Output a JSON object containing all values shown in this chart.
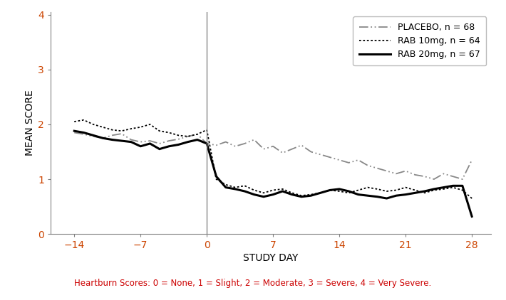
{
  "xlabel": "STUDY DAY",
  "ylabel": "MEAN SCORE",
  "footnote": "Heartburn Scores: 0 = None, 1 = Slight, 2 = Moderate, 3 = Severe, 4 = Very Severe.",
  "ylim": [
    0,
    4.05
  ],
  "yticks": [
    0,
    1,
    2,
    3,
    4
  ],
  "xticks": [
    -14,
    -7,
    0,
    7,
    14,
    21,
    28
  ],
  "xlim": [
    -16.5,
    30
  ],
  "vline_x": 0,
  "legend_labels": [
    "PLACEBO, n = 68",
    "RAB 10mg, n = 64",
    "RAB 20mg, n = 67"
  ],
  "placebo_x": [
    -14,
    -13,
    -12,
    -11,
    -10,
    -9,
    -8,
    -7,
    -6,
    -5,
    -4,
    -3,
    -2,
    -1,
    0,
    1,
    2,
    3,
    4,
    5,
    6,
    7,
    8,
    9,
    10,
    11,
    12,
    13,
    14,
    15,
    16,
    17,
    18,
    19,
    20,
    21,
    22,
    23,
    24,
    25,
    26,
    27,
    28
  ],
  "placebo_y": [
    1.85,
    1.82,
    1.78,
    1.75,
    1.8,
    1.83,
    1.72,
    1.68,
    1.7,
    1.65,
    1.7,
    1.73,
    1.78,
    1.82,
    1.65,
    1.62,
    1.68,
    1.6,
    1.65,
    1.72,
    1.55,
    1.6,
    1.48,
    1.55,
    1.62,
    1.5,
    1.45,
    1.4,
    1.35,
    1.3,
    1.35,
    1.25,
    1.2,
    1.15,
    1.1,
    1.15,
    1.08,
    1.05,
    1.0,
    1.1,
    1.05,
    1.0,
    1.35
  ],
  "rab10_x": [
    -14,
    -13,
    -12,
    -11,
    -10,
    -9,
    -8,
    -7,
    -6,
    -5,
    -4,
    -3,
    -2,
    -1,
    0,
    1,
    2,
    3,
    4,
    5,
    6,
    7,
    8,
    9,
    10,
    11,
    12,
    13,
    14,
    15,
    16,
    17,
    18,
    19,
    20,
    21,
    22,
    23,
    24,
    25,
    26,
    27,
    28
  ],
  "rab10_y": [
    2.05,
    2.08,
    2.0,
    1.95,
    1.9,
    1.88,
    1.92,
    1.95,
    2.0,
    1.88,
    1.85,
    1.8,
    1.78,
    1.82,
    1.9,
    1.0,
    0.9,
    0.85,
    0.88,
    0.8,
    0.75,
    0.8,
    0.82,
    0.75,
    0.7,
    0.72,
    0.75,
    0.8,
    0.78,
    0.75,
    0.8,
    0.85,
    0.82,
    0.78,
    0.8,
    0.85,
    0.8,
    0.75,
    0.8,
    0.82,
    0.85,
    0.8,
    0.65
  ],
  "rab20_x": [
    -14,
    -13,
    -12,
    -11,
    -10,
    -9,
    -8,
    -7,
    -6,
    -5,
    -4,
    -3,
    -2,
    -1,
    0,
    1,
    2,
    3,
    4,
    5,
    6,
    7,
    8,
    9,
    10,
    11,
    12,
    13,
    14,
    15,
    16,
    17,
    18,
    19,
    20,
    21,
    22,
    23,
    24,
    25,
    26,
    27,
    28
  ],
  "rab20_y": [
    1.88,
    1.85,
    1.8,
    1.75,
    1.72,
    1.7,
    1.68,
    1.6,
    1.65,
    1.55,
    1.6,
    1.63,
    1.68,
    1.72,
    1.65,
    1.05,
    0.85,
    0.82,
    0.78,
    0.72,
    0.68,
    0.72,
    0.78,
    0.72,
    0.68,
    0.7,
    0.75,
    0.8,
    0.82,
    0.78,
    0.72,
    0.7,
    0.68,
    0.65,
    0.7,
    0.72,
    0.75,
    0.78,
    0.82,
    0.85,
    0.88,
    0.88,
    0.32
  ],
  "background_color": "#ffffff",
  "axis_color": "#808080",
  "tick_label_color": "#cc4400",
  "line_color_placebo": "#888888",
  "line_color_rab10": "#000000",
  "line_color_rab20": "#000000",
  "footnote_color": "#cc0000",
  "xlabel_color": "#000000",
  "ylabel_color": "#000000"
}
